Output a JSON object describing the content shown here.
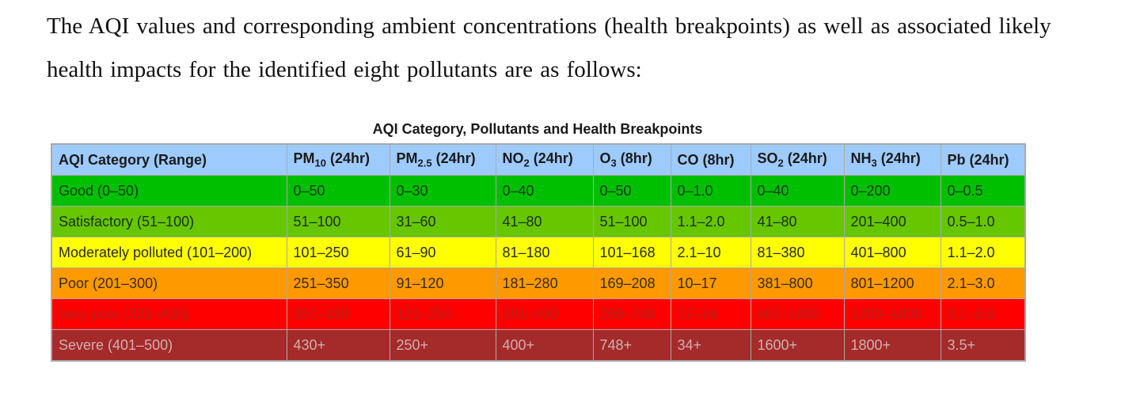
{
  "intro_text": "The AQI values and corresponding ambient concentrations (health breakpoints) as well as associated likely health impacts for the identified eight pollutants are as follows:",
  "table": {
    "caption": "AQI Category, Pollutants and Health Breakpoints",
    "headers": [
      {
        "pre": "AQI Category (Range)",
        "sub": "",
        "post": ""
      },
      {
        "pre": "PM",
        "sub": "10",
        "post": " (24hr)"
      },
      {
        "pre": "PM",
        "sub": "2.5",
        "post": " (24hr)"
      },
      {
        "pre": "NO",
        "sub": "2",
        "post": " (24hr)"
      },
      {
        "pre": "O",
        "sub": "3",
        "post": " (8hr)"
      },
      {
        "pre": "CO (8hr)",
        "sub": "",
        "post": ""
      },
      {
        "pre": "SO",
        "sub": "2",
        "post": " (24hr)"
      },
      {
        "pre": "NH",
        "sub": "3",
        "post": " (24hr)"
      },
      {
        "pre": "Pb (24hr)",
        "sub": "",
        "post": ""
      }
    ],
    "rows": [
      {
        "key": "good",
        "color": "#00bf00",
        "cells": [
          "Good (0–50)",
          "0–50",
          "0–30",
          "0–40",
          "0–50",
          "0–1.0",
          "0–40",
          "0–200",
          "0–0.5"
        ]
      },
      {
        "key": "satisfactory",
        "color": "#66c600",
        "cells": [
          "Satisfactory (51–100)",
          "51–100",
          "31–60",
          "41–80",
          "51–100",
          "1.1–2.0",
          "41–80",
          "201–400",
          "0.5–1.0"
        ]
      },
      {
        "key": "moderate",
        "color": "#ffff00",
        "cells": [
          "Moderately polluted (101–200)",
          "101–250",
          "61–90",
          "81–180",
          "101–168",
          "2.1–10",
          "81–380",
          "401–800",
          "1.1–2.0"
        ]
      },
      {
        "key": "poor",
        "color": "#ff9900",
        "cells": [
          "Poor (201–300)",
          "251–350",
          "91–120",
          "181–280",
          "169–208",
          "10–17",
          "381–800",
          "801–1200",
          "2.1–3.0"
        ]
      },
      {
        "key": "verypoor",
        "color": "#ff0000",
        "cells": [
          "Very poor (301–400)",
          "351–430",
          "121–250",
          "281–400",
          "209–748",
          "17–34",
          "801–1600",
          "1200–1800",
          "3.1–3.5"
        ]
      },
      {
        "key": "severe",
        "color": "#a52a2a",
        "cells": [
          "Severe (401–500)",
          "430+",
          "250+",
          "400+",
          "748+",
          "34+",
          "1600+",
          "1800+",
          "3.5+"
        ]
      }
    ]
  }
}
